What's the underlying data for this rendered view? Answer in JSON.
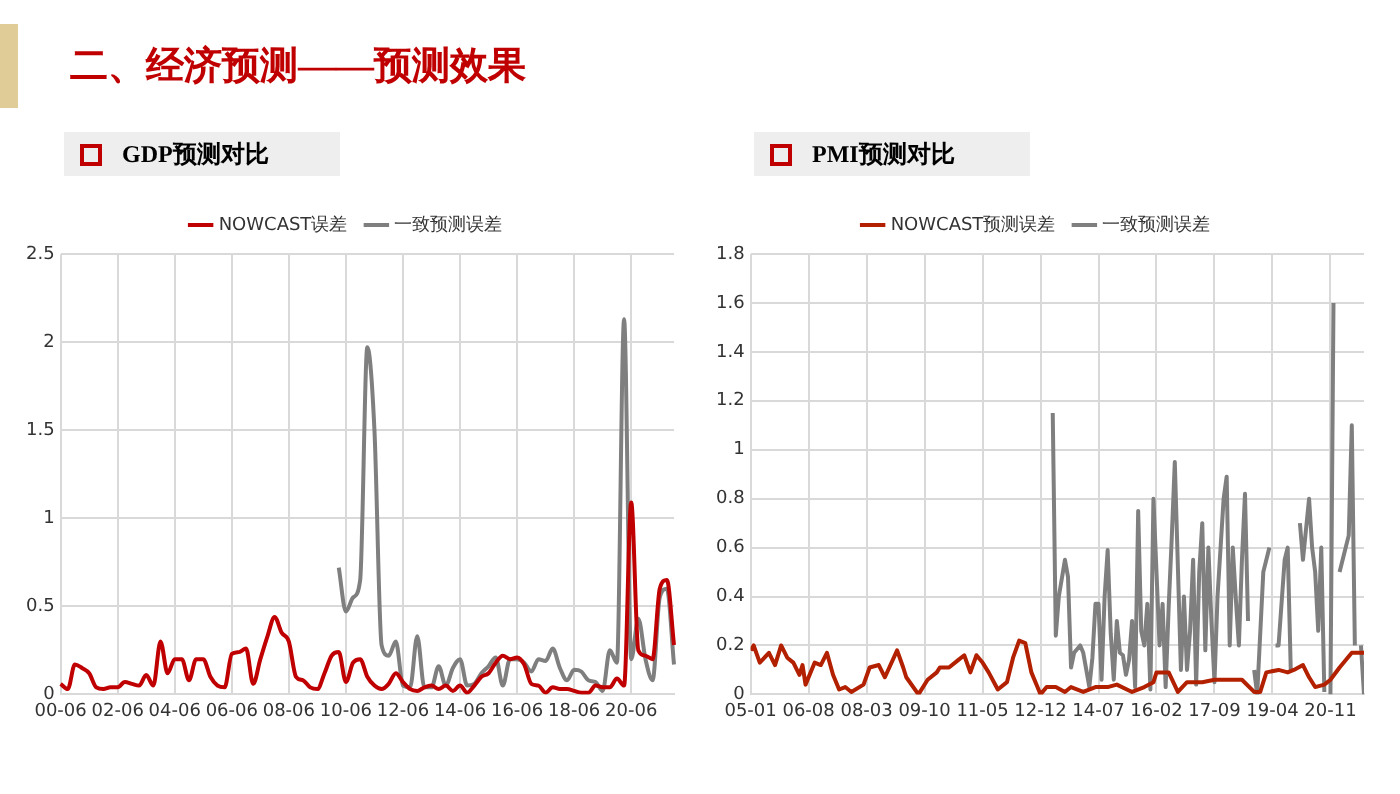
{
  "chart_data": [
    {
      "type": "line",
      "title": "GDP预测对比",
      "annotations": [
        "二、经济预测——预测效果"
      ],
      "categories": [
        "00-06",
        null,
        null,
        null,
        null,
        null,
        null,
        null,
        "02-06",
        null,
        null,
        null,
        null,
        null,
        null,
        null,
        "04-06",
        null,
        null,
        null,
        null,
        null,
        null,
        null,
        "06-06",
        null,
        null,
        null,
        null,
        null,
        null,
        null,
        "08-06",
        null,
        null,
        null,
        null,
        null,
        null,
        null,
        "10-06",
        null,
        null,
        null,
        null,
        null,
        null,
        null,
        "12-06",
        null,
        null,
        null,
        null,
        null,
        null,
        null,
        "14-06",
        null,
        null,
        null,
        null,
        null,
        null,
        null,
        "16-06",
        null,
        null,
        null,
        null,
        null,
        null,
        null,
        "18-06",
        null,
        null,
        null,
        null,
        null,
        null,
        null,
        "20-06",
        null,
        null,
        null,
        null,
        null,
        null
      ],
      "series": [
        {
          "name": "NOWCAST误差",
          "color": "#c00000",
          "values": [
            0.06,
            0.03,
            0.17,
            0.15,
            0.12,
            0.04,
            0.03,
            0.04,
            0.04,
            0.07,
            0.06,
            0.05,
            0.11,
            0.05,
            0.3,
            0.12,
            0.2,
            0.2,
            0.08,
            0.2,
            0.2,
            0.1,
            0.05,
            0.04,
            0.23,
            0.24,
            0.26,
            0.06,
            0.2,
            0.33,
            0.44,
            0.35,
            0.3,
            0.1,
            0.08,
            0.04,
            0.03,
            0.12,
            0.22,
            0.24,
            0.07,
            0.18,
            0.2,
            0.1,
            0.05,
            0.03,
            0.06,
            0.12,
            0.07,
            0.03,
            0.02,
            0.04,
            0.05,
            0.03,
            0.05,
            0.02,
            0.05,
            0.01,
            0.05,
            0.1,
            0.12,
            0.18,
            0.22,
            0.2,
            0.21,
            0.17,
            0.06,
            0.05,
            0.01,
            0.04,
            0.03,
            0.03,
            0.02,
            0.01,
            0.01,
            0.05,
            0.04,
            0.04,
            0.09,
            0.05,
            1.09,
            0.25,
            0.22,
            0.2,
            0.6,
            0.65,
            0.28
          ]
        },
        {
          "name": "一致预测误差",
          "color": "#7f7f7f",
          "values": [
            null,
            null,
            null,
            null,
            null,
            null,
            null,
            null,
            null,
            null,
            null,
            null,
            null,
            null,
            null,
            null,
            null,
            null,
            null,
            null,
            null,
            null,
            null,
            null,
            null,
            null,
            null,
            null,
            null,
            null,
            null,
            null,
            null,
            null,
            null,
            null,
            null,
            null,
            null,
            0.72,
            0.47,
            0.55,
            0.65,
            1.97,
            1.5,
            0.28,
            0.22,
            0.3,
            0.05,
            0.04,
            0.33,
            0.04,
            0.04,
            0.16,
            0.05,
            0.15,
            0.2,
            0.05,
            0.06,
            0.12,
            0.16,
            0.21,
            0.05,
            0.2,
            0.2,
            0.18,
            0.13,
            0.2,
            0.19,
            0.26,
            0.15,
            0.08,
            0.14,
            0.13,
            0.08,
            0.07,
            0.02,
            0.25,
            0.18,
            2.13,
            0.2,
            0.43,
            0.2,
            0.08,
            0.55,
            0.6,
            0.17
          ]
        }
      ],
      "ylim": [
        0,
        2.5
      ],
      "yticks": [
        0,
        0.5,
        1,
        1.5,
        2,
        2.5
      ],
      "grid": true,
      "legend": "top"
    },
    {
      "type": "line",
      "title": "PMI预测对比",
      "xlim": [
        "2005-01",
        "2021-10"
      ],
      "xticks": [
        {
          "value": "2005-01",
          "label": "05-01"
        },
        {
          "value": "2006-08",
          "label": "06-08"
        },
        {
          "value": "2008-03",
          "label": "08-03"
        },
        {
          "value": "2009-10",
          "label": "09-10"
        },
        {
          "value": "2011-05",
          "label": "11-05"
        },
        {
          "value": "2012-12",
          "label": "12-12"
        },
        {
          "value": "2014-07",
          "label": "14-07"
        },
        {
          "value": "2016-02",
          "label": "16-02"
        },
        {
          "value": "2017-09",
          "label": "17-09"
        },
        {
          "value": "2019-04",
          "label": "19-04"
        },
        {
          "value": "2020-11",
          "label": "20-11"
        }
      ],
      "series": [
        {
          "name": "NOWCAST预测误差",
          "color": "#b22000",
          "x": [
            "2005-01",
            "2005-02",
            "2005-04",
            "2005-07",
            "2005-09",
            "2005-11",
            "2006-01",
            "2006-03",
            "2006-05",
            "2006-06",
            "2006-07",
            "2006-10",
            "2006-12",
            "2007-02",
            "2007-04",
            "2007-06",
            "2007-08",
            "2007-10",
            "2008-02",
            "2008-04",
            "2008-07",
            "2008-09",
            "2009-01",
            "2009-03",
            "2009-04",
            "2009-08",
            "2009-11",
            "2010-02",
            "2010-03",
            "2010-06",
            "2010-09",
            "2010-11",
            "2011-01",
            "2011-03",
            "2011-05",
            "2011-07",
            "2011-10",
            "2012-01",
            "2012-03",
            "2012-05",
            "2012-07",
            "2012-09",
            "2012-11",
            "2012-12",
            "2013-02",
            "2013-05",
            "2013-08",
            "2013-10",
            "2014-02",
            "2014-06",
            "2014-10",
            "2015-01",
            "2015-06",
            "2015-10",
            "2016-01",
            "2016-02",
            "2016-06",
            "2016-09",
            "2016-12",
            "2017-05",
            "2017-09",
            "2018-02",
            "2018-06",
            "2018-10",
            "2018-12",
            "2019-02",
            "2019-06",
            "2019-09",
            "2019-11",
            "2020-02",
            "2020-04",
            "2020-06",
            "2020-09",
            "2020-11",
            "2021-02",
            "2021-06",
            "2021-08",
            "2021-10"
          ],
          "values": [
            0.18,
            0.2,
            0.13,
            0.17,
            0.12,
            0.2,
            0.15,
            0.13,
            0.08,
            0.12,
            0.04,
            0.13,
            0.12,
            0.17,
            0.08,
            0.02,
            0.03,
            0.01,
            0.04,
            0.11,
            0.12,
            0.07,
            0.18,
            0.11,
            0.07,
            0.0,
            0.06,
            0.09,
            0.11,
            0.11,
            0.14,
            0.16,
            0.09,
            0.16,
            0.13,
            0.09,
            0.02,
            0.05,
            0.15,
            0.22,
            0.21,
            0.09,
            0.03,
            0.0,
            0.03,
            0.03,
            0.01,
            0.03,
            0.01,
            0.03,
            0.03,
            0.04,
            0.01,
            0.03,
            0.05,
            0.09,
            0.09,
            0.01,
            0.05,
            0.05,
            0.06,
            0.06,
            0.06,
            0.01,
            0.01,
            0.09,
            0.1,
            0.09,
            0.1,
            0.12,
            0.07,
            0.03,
            0.04,
            0.06,
            0.11,
            0.17,
            0.17,
            0.17
          ]
        },
        {
          "name": "一致预测误差",
          "color": "#7f7f7f",
          "x": [
            "2013-04",
            "2013-05",
            "2013-06",
            "2013-08",
            "2013-09",
            "2013-10",
            "2013-11",
            "2014-01",
            "2014-02",
            "2014-03",
            "2014-04",
            "2014-05",
            "2014-06",
            "2014-07",
            "2014-08",
            "2014-09",
            "2014-10",
            "2014-11",
            "2014-12",
            "2015-01",
            "2015-02",
            "2015-03",
            "2015-04",
            "2015-05",
            "2015-06",
            "2015-07",
            "2015-08",
            "2015-09",
            "2015-10",
            "2015-11",
            "2015-12",
            "2016-01",
            "2016-03",
            "2016-04",
            "2016-05",
            "2016-06",
            "2016-07",
            "2016-08",
            "2016-10",
            "2016-11",
            "2016-12",
            "2017-01",
            "2017-02",
            "2017-03",
            "2017-04",
            "2017-05",
            "2017-06",
            "2017-07",
            "2017-08",
            "2017-09",
            "2017-10",
            "2017-11",
            "2017-12",
            "2018-01",
            "2018-02",
            "2018-03",
            "2018-04",
            "2018-05",
            "2018-06",
            "2018-07",
            "2018-08",
            "2018-09",
            "2018-10",
            "2018-11",
            "2019-01",
            "2019-03",
            "2019-04",
            "2019-05",
            "2019-06",
            "2019-08",
            "2019-09",
            "2019-10",
            "2019-11",
            "2020-01",
            "2020-02",
            "2020-04",
            "2020-05",
            "2020-06",
            "2020-07",
            "2020-08",
            "2020-09",
            "2020-10",
            "2020-11",
            "2020-12",
            "2021-01",
            "2021-02",
            "2021-03",
            "2021-05",
            "2021-06",
            "2021-07",
            "2021-08",
            "2021-09",
            "2021-10"
          ],
          "values": [
            1.15,
            0.24,
            0.4,
            0.55,
            0.48,
            0.11,
            0.17,
            0.2,
            0.17,
            0.1,
            0.03,
            0.15,
            0.37,
            0.37,
            0.06,
            0.4,
            0.59,
            0.25,
            0.06,
            0.3,
            0.17,
            0.16,
            0.08,
            0.14,
            0.3,
            0.03,
            0.75,
            0.26,
            0.2,
            0.37,
            0.02,
            0.8,
            0.2,
            0.37,
            0.03,
            0.36,
            0.64,
            0.95,
            0.1,
            0.4,
            0.1,
            0.26,
            0.55,
            0.04,
            0.5,
            0.7,
            0.18,
            0.6,
            0.3,
            0.05,
            0.4,
            0.6,
            0.8,
            0.89,
            0.2,
            0.6,
            0.39,
            0.2,
            0.55,
            0.82,
            0.3,
            null,
            0.1,
            0.0,
            0.5,
            0.6,
            null,
            0.2,
            0.2,
            0.55,
            0.6,
            0.1,
            null,
            0.7,
            0.55,
            0.8,
            0.6,
            0.5,
            0.26,
            0.6,
            0.01,
            null,
            0.0,
            1.6,
            null,
            0.5,
            0.55,
            0.65,
            1.1,
            0.2,
            null,
            0.2,
            0.0
          ]
        }
      ],
      "ylim": [
        0,
        1.8
      ],
      "yticks": [
        0,
        0.2,
        0.4,
        0.6,
        0.8,
        1,
        1.2,
        1.4,
        1.6,
        1.8
      ],
      "grid": true,
      "legend": "top"
    }
  ]
}
